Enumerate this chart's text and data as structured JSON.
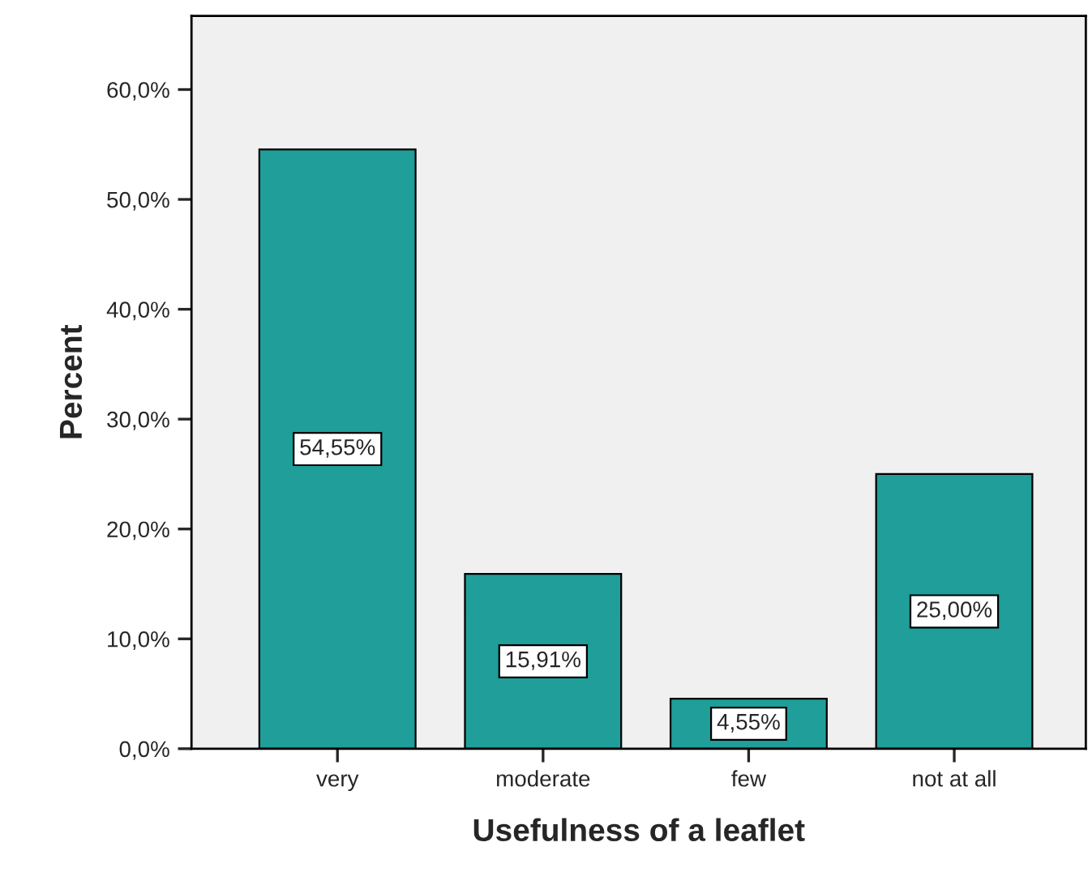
{
  "chart_data": {
    "type": "bar",
    "xlabel": "Usefulness of a leaflet",
    "ylabel": "Percent",
    "categories": [
      "very",
      "moderate",
      "few",
      "not at all"
    ],
    "values": [
      54.55,
      15.91,
      4.55,
      25.0
    ],
    "value_labels": [
      "54,55%",
      "15,91%",
      "4,55%",
      "25,00%"
    ],
    "color": "#1f9e9a",
    "ylim": [
      0,
      66.7
    ],
    "yticks": [
      {
        "value": 0,
        "label": "0,0%"
      },
      {
        "value": 10,
        "label": "10,0%"
      },
      {
        "value": 20,
        "label": "20,0%"
      },
      {
        "value": 30,
        "label": "30,0%"
      },
      {
        "value": 40,
        "label": "40,0%"
      },
      {
        "value": 50,
        "label": "50,0%"
      },
      {
        "value": 60,
        "label": "60,0%"
      }
    ],
    "grid": false
  }
}
